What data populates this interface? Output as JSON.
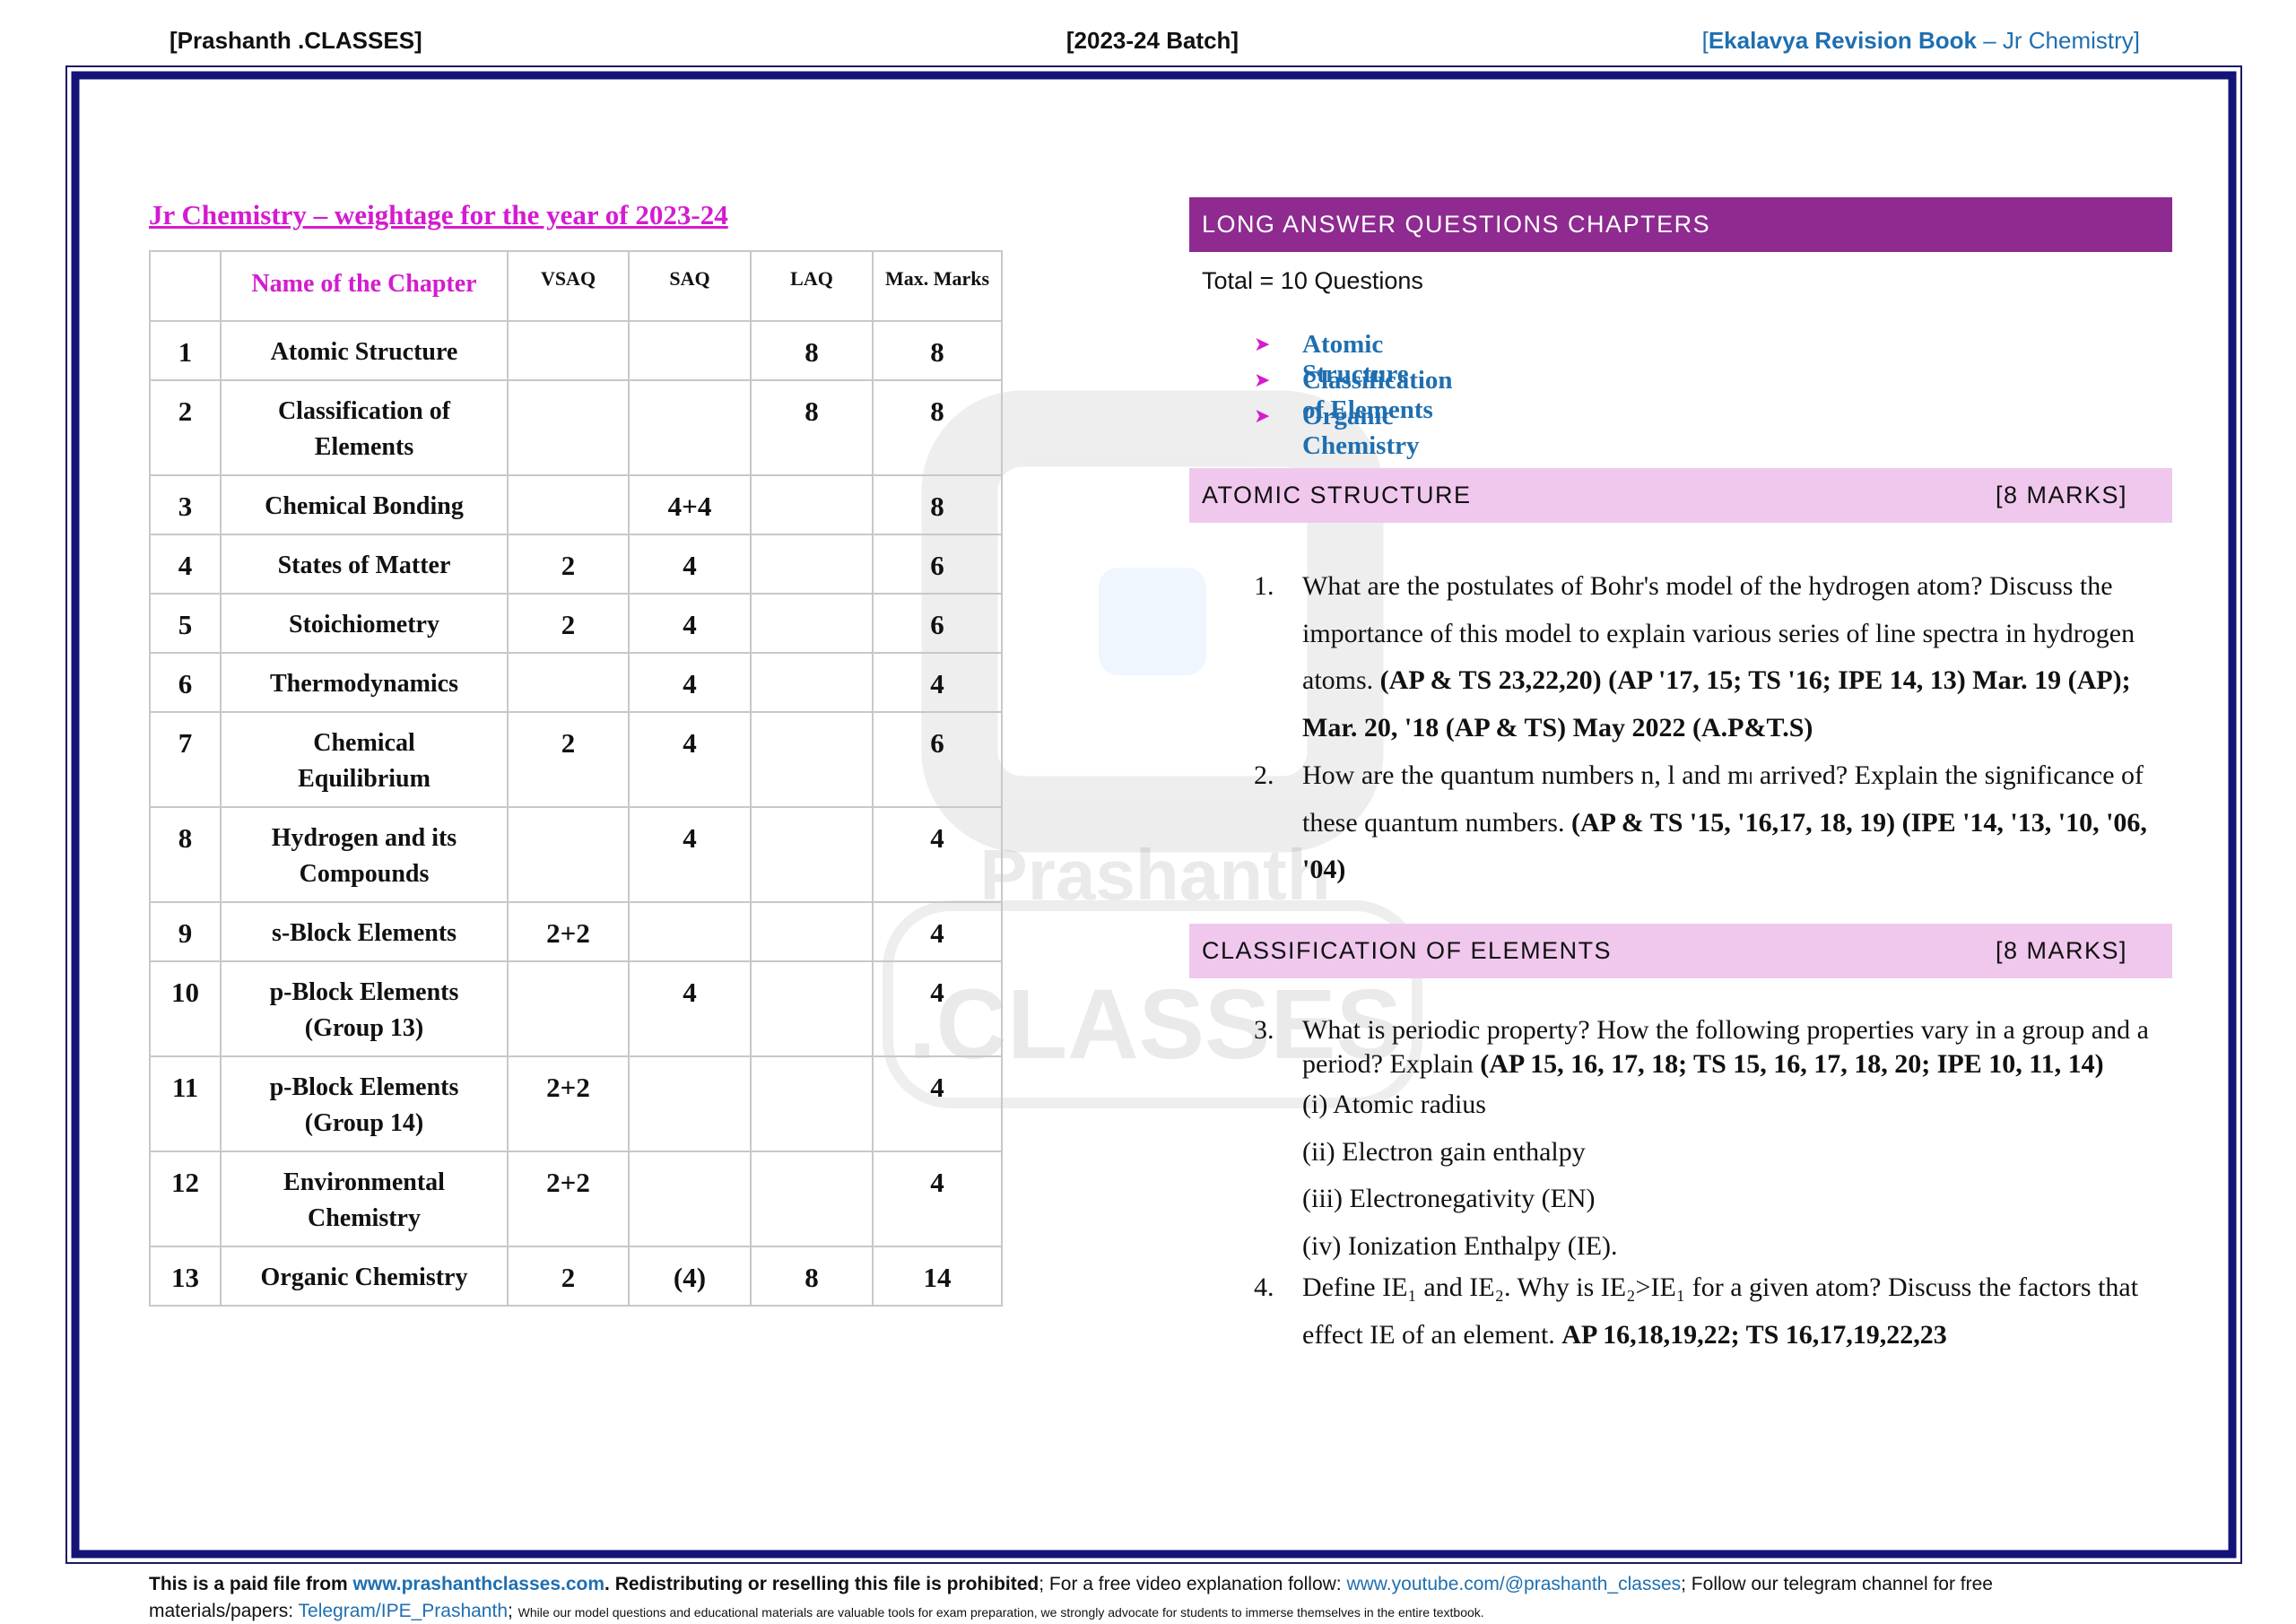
{
  "header": {
    "left": "[Prashanth .CLASSES]",
    "center": "[2023-24 Batch]",
    "right": [
      "[",
      "Ekalavya Revision Book",
      " – Jr Chemistry]"
    ]
  },
  "watermark": [
    "Prashanth",
    ".CLASSES"
  ],
  "weightage": {
    "title": "Jr Chemistry – weightage for the year of 2023-24",
    "table": {
      "header": [
        null,
        "Name of the Chapter",
        "VSAQ",
        "SAQ",
        "LAQ",
        "Max. Marks"
      ],
      "rows": [
        [
          "1",
          "Atomic Structure",
          null,
          null,
          "8",
          "8"
        ],
        [
          "2",
          "Classification of Elements",
          null,
          null,
          "8",
          "8"
        ],
        [
          "3",
          "Chemical Bonding",
          null,
          "4+4",
          null,
          "8"
        ],
        [
          "4",
          "States of Matter",
          "2",
          "4",
          null,
          "6"
        ],
        [
          "5",
          "Stoichiometry",
          "2",
          "4",
          null,
          "6"
        ],
        [
          "6",
          "Thermodynamics",
          null,
          "4",
          null,
          "4"
        ],
        [
          "7",
          "Chemical Equilibrium",
          "2",
          "4",
          null,
          "6"
        ],
        [
          "8",
          "Hydrogen and its Compounds",
          null,
          "4",
          null,
          "4"
        ],
        [
          "9",
          "s-Block Elements",
          "2+2",
          null,
          null,
          "4"
        ],
        [
          "10",
          "p-Block Elements (Group 13)",
          null,
          "4",
          null,
          "4"
        ],
        [
          "11",
          "p-Block Elements (Group 14)",
          "2+2",
          null,
          null,
          "4"
        ],
        [
          "12",
          "Environmental Chemistry",
          "2+2",
          null,
          null,
          "4"
        ],
        [
          "13",
          "Organic Chemistry",
          "2",
          "(4)",
          "8",
          "14"
        ]
      ]
    }
  },
  "laq": {
    "heading": "LONG ANSWER QUESTIONS CHAPTERS",
    "total": "Total =  10 Questions",
    "chapters": [
      "Atomic Structure",
      "Classification of Elements",
      "Organic Chemistry"
    ],
    "sections": [
      {
        "title": "ATOMIC STRUCTURE",
        "marks": "[8 MARKS]",
        "questions": [
          {
            "number": "1.",
            "text": "What are the postulates of Bohr's model of the hydrogen atom? Discuss the importance of this model to explain various series of line spectra in hydrogen atoms. ",
            "ref": "(AP & TS 23,22,20) (AP '17, 15; TS '16; IPE 14, 13) Mar. 19 (AP); Mar. 20, '18 (AP & TS) May 2022 (A.P&T.S)"
          },
          {
            "number": "2.",
            "text": "How are the quantum numbers n, l and mₗ arrived? Explain the significance of these quantum numbers. ",
            "ref": "(AP & TS '15, '16,17, 18, 19) (IPE '14, '13, '10, '06, '04)"
          }
        ]
      },
      {
        "title": "CLASSIFICATION OF ELEMENTS",
        "marks": "[8 MARKS]",
        "questions": [
          {
            "number": "3.",
            "text": "What is periodic property? How the following properties vary in a group and a period? Explain ",
            "ref": "(AP 15, 16, 17, 18; TS 15, 16, 17, 18, 20; IPE 10, 11, 14)",
            "items": [
              "(i) Atomic radius",
              "(ii) Electron gain enthalpy",
              "(iii) Electronegativity (EN)",
              "(iv) Ionization Enthalpy (IE)."
            ]
          },
          {
            "number": "4.",
            "text": "Define IE₁ and IE₂. Why is IE₂>IE₁ for a given atom? Discuss the factors that effect IE of an element. ",
            "ref": "AP 16,18,19,22; TS 16,17,19,22,23"
          }
        ]
      }
    ]
  },
  "footer": [
    "This is a paid file from ",
    "www.prashanthclasses.com",
    ". Redistributing or reselling this file is prohibited",
    "; For a free video explanation follow: ",
    "www.youtube.com/@prashanth_classes",
    "; Follow our telegram channel for free materials/papers: ",
    "Telegram/IPE_Prashanth",
    "; ",
    "While our model questions and educational materials are valuable tools for exam preparation, we strongly advocate for students to immerse themselves in the entire textbook."
  ]
}
